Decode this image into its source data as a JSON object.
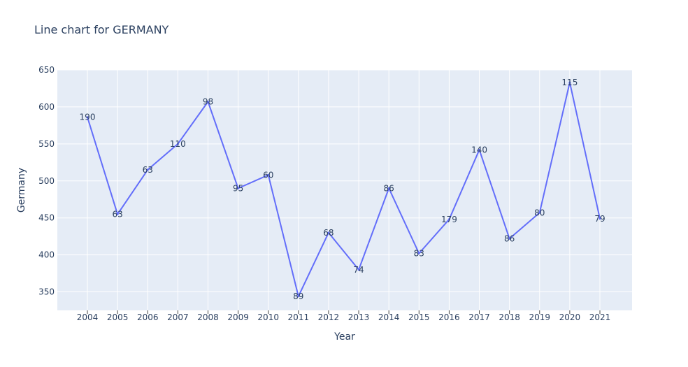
{
  "chart_data": {
    "type": "line",
    "title": "Line chart for GERMANY",
    "xlabel": "Year",
    "ylabel": "Germany",
    "ylim": [
      325,
      650
    ],
    "yticks": [
      350,
      400,
      450,
      500,
      550,
      600,
      650
    ],
    "grid": true,
    "x": [
      "2004",
      "2005",
      "2006",
      "2007",
      "2008",
      "2009",
      "2010",
      "2011",
      "2012",
      "2013",
      "2014",
      "2015",
      "2016",
      "2017",
      "2018",
      "2019",
      "2020",
      "2021"
    ],
    "series": [
      {
        "values": [
          586,
          455,
          515,
          550,
          607,
          490,
          508,
          344,
          430,
          380,
          490,
          402,
          448,
          542,
          422,
          457,
          633,
          449
        ],
        "labels": [
          "190",
          "63",
          "63",
          "110",
          "98",
          "95",
          "60",
          "89",
          "68",
          "74",
          "86",
          "83",
          "179",
          "140",
          "86",
          "80",
          "115",
          "79"
        ]
      }
    ],
    "colors": {
      "line": "#636efa",
      "plot_bg": "#e5ecf6",
      "grid": "#ffffff",
      "text": "#2a3f5f"
    }
  }
}
